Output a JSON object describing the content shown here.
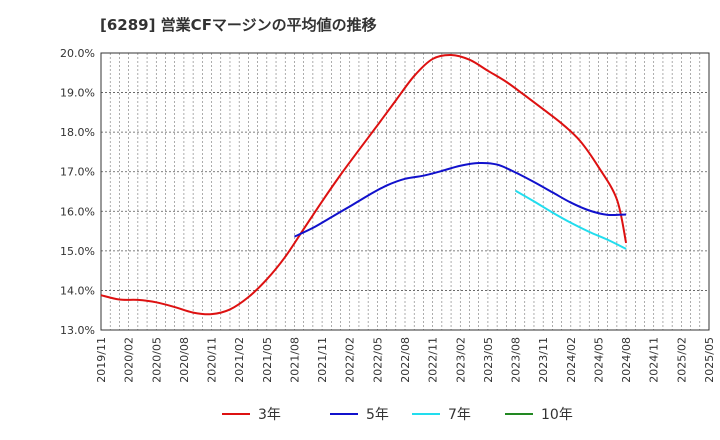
{
  "chart_title": "[6289]  営業CFマージンの平均値の推移",
  "chart_data": {
    "type": "line",
    "title": "[6289]  営業CFマージンの平均値の推移",
    "xlabel": "",
    "ylabel": "",
    "ylim": [
      13.0,
      20.0
    ],
    "y_ticks": [
      "13.0%",
      "14.0%",
      "15.0%",
      "16.0%",
      "17.0%",
      "18.0%",
      "19.0%",
      "20.0%"
    ],
    "y_tick_values": [
      13,
      14,
      15,
      16,
      17,
      18,
      19,
      20
    ],
    "x_ticks": [
      "2019/11",
      "2020/02",
      "2020/05",
      "2020/08",
      "2020/11",
      "2021/02",
      "2021/05",
      "2021/08",
      "2021/11",
      "2022/02",
      "2022/05",
      "2022/08",
      "2022/11",
      "2023/02",
      "2023/05",
      "2023/08",
      "2023/11",
      "2024/02",
      "2024/05",
      "2024/08",
      "2024/11",
      "2025/02",
      "2025/05"
    ],
    "grid": true,
    "legend_position": "bottom",
    "series": [
      {
        "name": "3年",
        "color": "#dd1111",
        "points": [
          [
            "2019/11",
            13.88
          ],
          [
            "2020/01",
            13.77
          ],
          [
            "2020/03",
            13.76
          ],
          [
            "2020/05",
            13.7
          ],
          [
            "2020/07",
            13.58
          ],
          [
            "2020/09",
            13.44
          ],
          [
            "2020/11",
            13.4
          ],
          [
            "2021/01",
            13.52
          ],
          [
            "2021/03",
            13.83
          ],
          [
            "2021/05",
            14.28
          ],
          [
            "2021/07",
            14.85
          ],
          [
            "2021/09",
            15.55
          ],
          [
            "2021/11",
            16.25
          ],
          [
            "2022/01",
            16.92
          ],
          [
            "2022/03",
            17.55
          ],
          [
            "2022/05",
            18.17
          ],
          [
            "2022/07",
            18.8
          ],
          [
            "2022/09",
            19.42
          ],
          [
            "2022/11",
            19.85
          ],
          [
            "2023/01",
            19.95
          ],
          [
            "2023/03",
            19.83
          ],
          [
            "2023/05",
            19.55
          ],
          [
            "2023/07",
            19.27
          ],
          [
            "2023/09",
            18.93
          ],
          [
            "2023/11",
            18.58
          ],
          [
            "2024/01",
            18.22
          ],
          [
            "2024/03",
            17.78
          ],
          [
            "2024/05",
            17.12
          ],
          [
            "2024/07",
            16.3
          ],
          [
            "2024/08",
            15.2
          ]
        ]
      },
      {
        "name": "5年",
        "color": "#1111cc",
        "points": [
          [
            "2021/08",
            15.36
          ],
          [
            "2021/10",
            15.58
          ],
          [
            "2021/12",
            15.85
          ],
          [
            "2022/02",
            16.12
          ],
          [
            "2022/04",
            16.4
          ],
          [
            "2022/06",
            16.65
          ],
          [
            "2022/08",
            16.82
          ],
          [
            "2022/10",
            16.9
          ],
          [
            "2022/12",
            17.02
          ],
          [
            "2023/02",
            17.15
          ],
          [
            "2023/04",
            17.22
          ],
          [
            "2023/06",
            17.18
          ],
          [
            "2023/08",
            16.98
          ],
          [
            "2023/10",
            16.74
          ],
          [
            "2023/12",
            16.48
          ],
          [
            "2024/02",
            16.22
          ],
          [
            "2024/04",
            16.02
          ],
          [
            "2024/06",
            15.91
          ],
          [
            "2024/08",
            15.92
          ]
        ]
      },
      {
        "name": "7年",
        "color": "#22ddee",
        "points": [
          [
            "2023/08",
            16.52
          ],
          [
            "2023/10",
            16.25
          ],
          [
            "2023/12",
            15.97
          ],
          [
            "2024/02",
            15.71
          ],
          [
            "2024/04",
            15.48
          ],
          [
            "2024/06",
            15.28
          ],
          [
            "2024/08",
            15.05
          ]
        ]
      },
      {
        "name": "10年",
        "color": "#228822",
        "points": []
      }
    ]
  }
}
